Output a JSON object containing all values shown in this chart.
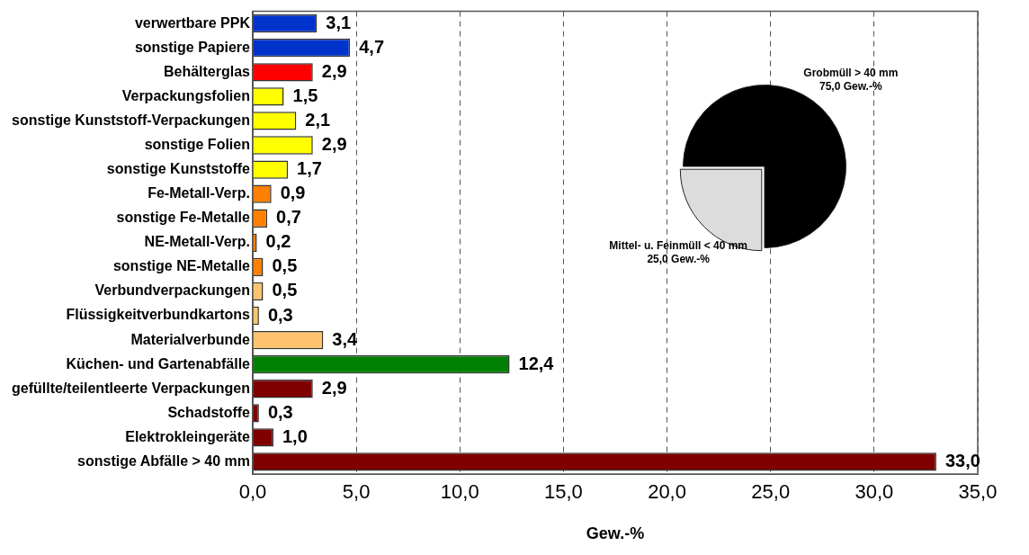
{
  "chart_data": [
    {
      "type": "bar",
      "orientation": "horizontal",
      "xlabel": "Gew.-%",
      "categories": [
        "verwertbare PPK",
        "sonstige Papiere",
        "Behälterglas",
        "Verpackungsfolien",
        "sonstige Kunststoff-Verpackungen",
        "sonstige Folien",
        "sonstige Kunststoffe",
        "Fe-Metall-Verp.",
        "sonstige Fe-Metalle",
        "NE-Metall-Verp.",
        "sonstige NE-Metalle",
        "Verbundverpackungen",
        "Flüssigkeitverbundkartons",
        "Materialverbunde",
        "Küchen- und Gartenabfälle",
        "gefüllte/teilentleerte Verpackungen",
        "Schadstoffe",
        "Elektrokleingeräte",
        "sonstige Abfälle > 40 mm"
      ],
      "values": [
        3.1,
        4.7,
        2.9,
        1.5,
        2.1,
        2.9,
        1.7,
        0.9,
        0.7,
        0.2,
        0.5,
        0.5,
        0.3,
        3.4,
        12.4,
        2.9,
        0.3,
        1.0,
        33.0
      ],
      "value_labels": [
        "3,1",
        "4,7",
        "2,9",
        "1,5",
        "2,1",
        "2,9",
        "1,7",
        "0,9",
        "0,7",
        "0,2",
        "0,5",
        "0,5",
        "0,3",
        "3,4",
        "12,4",
        "2,9",
        "0,3",
        "1,0",
        "33,0"
      ],
      "colors": [
        "#0033cc",
        "#0033cc",
        "#ff0000",
        "#ffff00",
        "#ffff00",
        "#ffff00",
        "#ffff00",
        "#ff8000",
        "#ff8000",
        "#ff8000",
        "#ff8000",
        "#ffc36e",
        "#ffc36e",
        "#ffc36e",
        "#008000",
        "#800000",
        "#800000",
        "#800000",
        "#800000"
      ],
      "xlim": [
        0,
        35
      ],
      "xticks": [
        {
          "value": 0,
          "label": "0,0"
        },
        {
          "value": 5,
          "label": "5,0"
        },
        {
          "value": 10,
          "label": "10,0"
        },
        {
          "value": 15,
          "label": "15,0"
        },
        {
          "value": 20,
          "label": "20,0"
        },
        {
          "value": 25,
          "label": "25,0"
        },
        {
          "value": 30,
          "label": "30,0"
        },
        {
          "value": 35,
          "label": "35,0"
        }
      ],
      "grid": "x",
      "legend": false
    },
    {
      "type": "pie",
      "categories": [
        "Grobmüll > 40 mm",
        "Mittel- u. Feinmüll < 40 mm"
      ],
      "values": [
        75,
        25
      ],
      "value_labels": [
        "75,0 Gew.-%",
        "25,0 Gew.-%"
      ],
      "colors": [
        "#000000",
        "#dcdcdc"
      ],
      "legend": false
    }
  ]
}
